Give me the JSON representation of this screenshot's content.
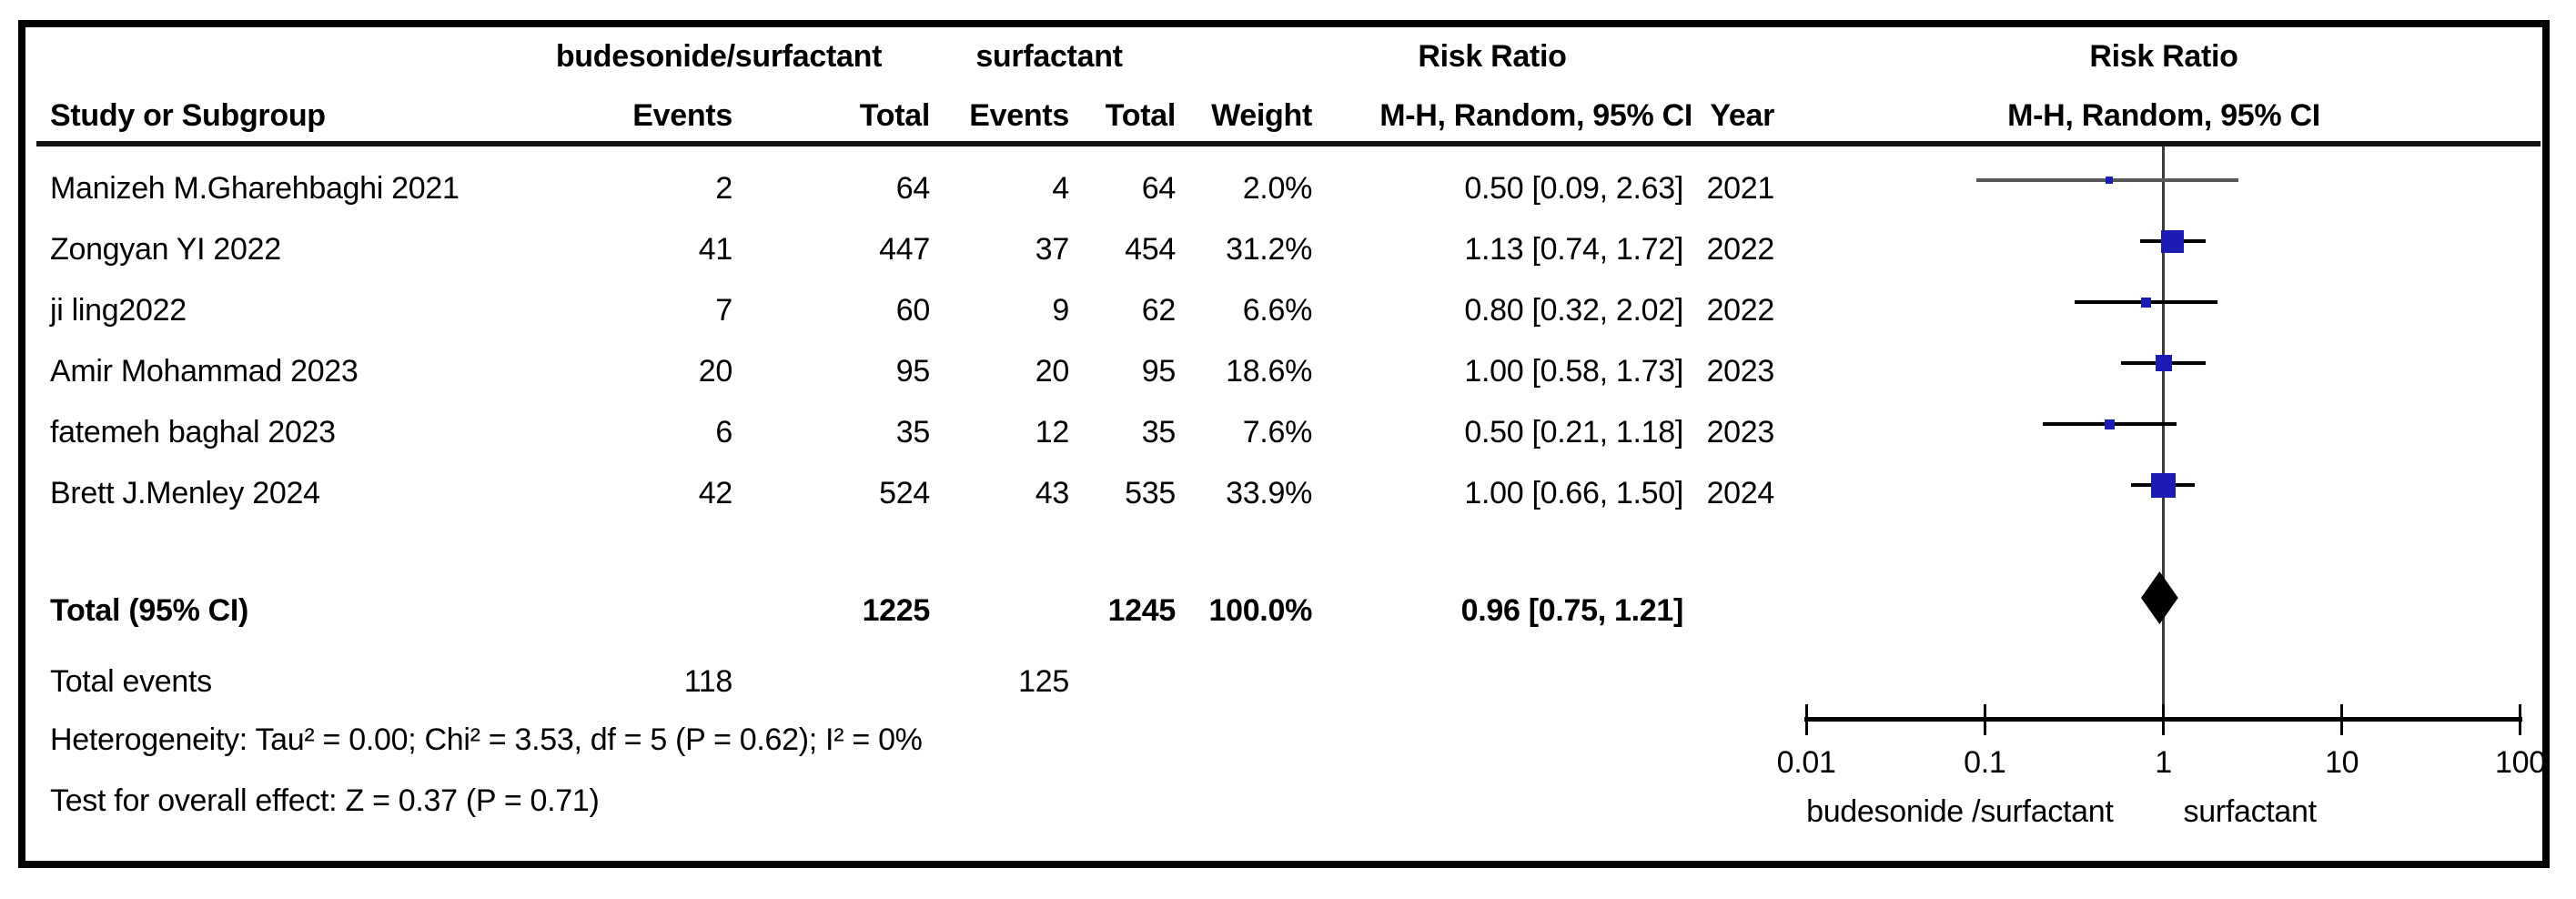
{
  "chart_data": {
    "type": "scatter",
    "subtype": "forest-plot-meta-analysis",
    "effect_measure": "Risk Ratio",
    "method_label": "M-H, Random, 95% CI",
    "x_scale": "log",
    "x_ticks": [
      0.01,
      0.1,
      1,
      10,
      100
    ],
    "x_tick_labels": [
      "0.01",
      "0.1",
      "1",
      "10",
      "100"
    ],
    "group_labels": {
      "treatment": "budesonide/surfactant",
      "control": "surfactant"
    },
    "effect_header": "Risk Ratio",
    "plot_effect_header": "Risk Ratio",
    "plot_method_header": "M-H, Random, 95% CI",
    "columns": {
      "study": "Study or Subgroup",
      "events_tx": "Events",
      "total_tx": "Total",
      "events_ctrl": "Events",
      "total_ctrl": "Total",
      "weight": "Weight",
      "effect": "M-H, Random, 95% CI",
      "year": "Year"
    },
    "studies": [
      {
        "name": "Manizeh M.Gharehbaghi 2021",
        "events_tx": "2",
        "total_tx": "64",
        "events_ctrl": "4",
        "total_ctrl": "64",
        "weight": "2.0%",
        "weight_pct": 2.0,
        "rr": 0.5,
        "ci_low": 0.09,
        "ci_high": 2.63,
        "ci_text": "0.50 [0.09, 2.63]",
        "year": "2021"
      },
      {
        "name": "Zongyan YI 2022",
        "events_tx": "41",
        "total_tx": "447",
        "events_ctrl": "37",
        "total_ctrl": "454",
        "weight": "31.2%",
        "weight_pct": 31.2,
        "rr": 1.13,
        "ci_low": 0.74,
        "ci_high": 1.72,
        "ci_text": "1.13 [0.74, 1.72]",
        "year": "2022"
      },
      {
        "name": "ji ling2022",
        "events_tx": "7",
        "total_tx": "60",
        "events_ctrl": "9",
        "total_ctrl": "62",
        "weight": "6.6%",
        "weight_pct": 6.6,
        "rr": 0.8,
        "ci_low": 0.32,
        "ci_high": 2.02,
        "ci_text": "0.80 [0.32, 2.02]",
        "year": "2022"
      },
      {
        "name": "Amir Mohammad 2023",
        "events_tx": "20",
        "total_tx": "95",
        "events_ctrl": "20",
        "total_ctrl": "95",
        "weight": "18.6%",
        "weight_pct": 18.6,
        "rr": 1.0,
        "ci_low": 0.58,
        "ci_high": 1.73,
        "ci_text": "1.00 [0.58, 1.73]",
        "year": "2023"
      },
      {
        "name": "fatemeh baghal 2023",
        "events_tx": "6",
        "total_tx": "35",
        "events_ctrl": "12",
        "total_ctrl": "35",
        "weight": "7.6%",
        "weight_pct": 7.6,
        "rr": 0.5,
        "ci_low": 0.21,
        "ci_high": 1.18,
        "ci_text": "0.50 [0.21, 1.18]",
        "year": "2023"
      },
      {
        "name": "Brett J.Menley 2024",
        "events_tx": "42",
        "total_tx": "524",
        "events_ctrl": "43",
        "total_ctrl": "535",
        "weight": "33.9%",
        "weight_pct": 33.9,
        "rr": 1.0,
        "ci_low": 0.66,
        "ci_high": 1.5,
        "ci_text": "1.00 [0.66, 1.50]",
        "year": "2024"
      }
    ],
    "total": {
      "label": "Total (95% CI)",
      "total_tx": "1225",
      "total_ctrl": "1245",
      "weight": "100.0%",
      "rr": 0.96,
      "ci_low": 0.75,
      "ci_high": 1.21,
      "ci_text": "0.96 [0.75, 1.21]"
    },
    "total_events": {
      "label": "Total events",
      "events_tx": "118",
      "events_ctrl": "125"
    },
    "heterogeneity": "Heterogeneity: Tau² = 0.00; Chi² = 3.53, df = 5 (P = 0.62); I² = 0%",
    "overall_effect": "Test for overall effect: Z = 0.37 (P = 0.71)",
    "axis_footer": {
      "left": "budesonide /surfactant",
      "right": "surfactant"
    }
  },
  "colors": {
    "square": "#1c1cb5",
    "diamond": "#000000",
    "ci_line": "#000000",
    "first_study_ci_line": "#58585a",
    "axis": "#000000",
    "center_line": "#3b3b3b"
  }
}
